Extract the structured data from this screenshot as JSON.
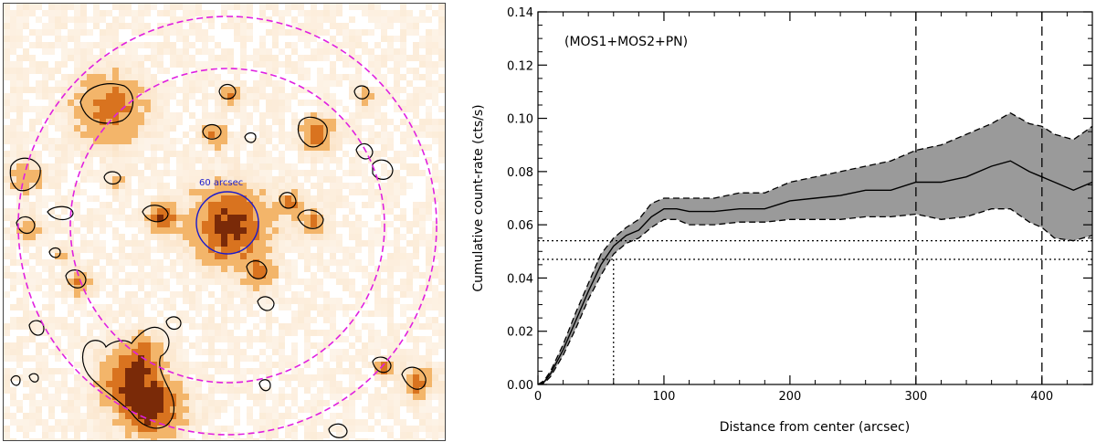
{
  "image_panel": {
    "aperture_label": "60 arcsec",
    "colors": {
      "background": "#ffffff",
      "pixel_light": "#fbe3c6",
      "pixel_mid": "#f3b56a",
      "pixel_hot": "#d9731f",
      "pixel_dark": "#7a2a08",
      "annulus": "#e020e0",
      "aperture": "#1a1acc",
      "contour": "#000000"
    }
  },
  "chart_data": {
    "type": "line",
    "title": "",
    "annotation": "(MOS1+MOS2+PN)",
    "xlabel": "Distance from center (arcsec)",
    "ylabel": "Cumulative count-rate (cts/s)",
    "xlim": [
      0,
      440
    ],
    "ylim": [
      0,
      0.14
    ],
    "xticks": [
      0,
      100,
      200,
      300,
      400
    ],
    "yticks": [
      0.0,
      0.02,
      0.04,
      0.06,
      0.08,
      0.1,
      0.12,
      0.14
    ],
    "xtick_labels": [
      "0",
      "100",
      "200",
      "300",
      "400"
    ],
    "ytick_labels": [
      "0.00",
      "0.02",
      "0.04",
      "0.06",
      "0.08",
      "0.10",
      "0.12",
      "0.14"
    ],
    "series": [
      {
        "name": "cumulative count-rate",
        "x": [
          0,
          5,
          10,
          20,
          30,
          40,
          50,
          60,
          70,
          80,
          90,
          100,
          110,
          120,
          140,
          160,
          180,
          200,
          220,
          240,
          260,
          280,
          300,
          320,
          340,
          360,
          375,
          390,
          400,
          410,
          425,
          440
        ],
        "y": [
          0.0,
          0.001,
          0.004,
          0.013,
          0.024,
          0.035,
          0.045,
          0.052,
          0.056,
          0.058,
          0.063,
          0.066,
          0.066,
          0.065,
          0.065,
          0.066,
          0.066,
          0.069,
          0.07,
          0.071,
          0.073,
          0.073,
          0.076,
          0.076,
          0.078,
          0.082,
          0.084,
          0.08,
          0.078,
          0.076,
          0.073,
          0.076
        ]
      },
      {
        "name": "upper error bound",
        "x": [
          0,
          5,
          10,
          20,
          30,
          40,
          50,
          60,
          70,
          80,
          90,
          100,
          110,
          120,
          140,
          160,
          180,
          200,
          220,
          240,
          260,
          280,
          300,
          320,
          340,
          360,
          375,
          390,
          400,
          410,
          425,
          440
        ],
        "y": [
          0.0,
          0.0015,
          0.005,
          0.015,
          0.027,
          0.038,
          0.049,
          0.055,
          0.059,
          0.062,
          0.068,
          0.07,
          0.07,
          0.07,
          0.07,
          0.072,
          0.072,
          0.076,
          0.078,
          0.08,
          0.082,
          0.084,
          0.088,
          0.09,
          0.094,
          0.098,
          0.102,
          0.098,
          0.097,
          0.094,
          0.092,
          0.097
        ]
      },
      {
        "name": "lower error bound",
        "x": [
          0,
          5,
          10,
          20,
          30,
          40,
          50,
          60,
          70,
          80,
          90,
          100,
          110,
          120,
          140,
          160,
          180,
          200,
          220,
          240,
          260,
          280,
          300,
          320,
          340,
          360,
          375,
          390,
          400,
          410,
          425,
          440
        ],
        "y": [
          0.0,
          0.0005,
          0.003,
          0.011,
          0.021,
          0.032,
          0.041,
          0.049,
          0.053,
          0.055,
          0.059,
          0.062,
          0.062,
          0.06,
          0.06,
          0.061,
          0.061,
          0.062,
          0.062,
          0.062,
          0.063,
          0.063,
          0.064,
          0.062,
          0.063,
          0.066,
          0.066,
          0.061,
          0.059,
          0.055,
          0.054,
          0.056
        ]
      }
    ],
    "reference_lines": {
      "vertical_dashed_x": [
        300,
        400
      ],
      "vertical_dotted_x": 60,
      "horizontal_dotted_y": [
        0.047,
        0.054
      ]
    },
    "colors": {
      "band": "#9a9a9a",
      "line": "#000000"
    }
  }
}
